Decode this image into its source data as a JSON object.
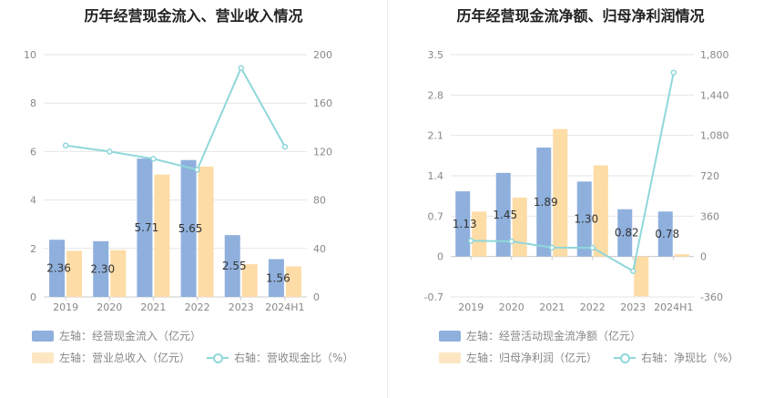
{
  "chart_data": [
    {
      "type": "bar",
      "title": "历年经营现金流入、营业收入情况",
      "categories": [
        "2019",
        "2020",
        "2021",
        "2022",
        "2023",
        "2024H1"
      ],
      "left_axis": {
        "ylim": [
          0,
          10
        ],
        "ticks": [
          "0",
          "2",
          "4",
          "6",
          "8",
          "10"
        ]
      },
      "right_axis": {
        "ylim": [
          0,
          200
        ],
        "ticks": [
          "0",
          "40",
          "80",
          "120",
          "160",
          "200"
        ]
      },
      "series": [
        {
          "name": "左轴：经营现金流入（亿元）",
          "axis": "left",
          "kind": "bar",
          "color": "#8fb0dd",
          "values": [
            2.36,
            2.3,
            5.71,
            5.65,
            2.55,
            1.56
          ],
          "labels": [
            "2.36",
            "2.30",
            "5.71",
            "5.65",
            "2.55",
            "1.56"
          ]
        },
        {
          "name": "左轴：营业总收入（亿元）",
          "axis": "left",
          "kind": "bar",
          "color": "#fddca6",
          "values": [
            1.9,
            1.93,
            5.05,
            5.38,
            1.35,
            1.26
          ]
        },
        {
          "name": "右轴：营收现金比（%）",
          "axis": "right",
          "kind": "line",
          "color": "#8fd7db",
          "values": [
            125,
            120,
            114,
            105,
            189,
            124
          ]
        }
      ],
      "grid": true,
      "legend_position": "bottom"
    },
    {
      "type": "bar",
      "title": "历年经营现金流净额、归母净利润情况",
      "categories": [
        "2019",
        "2020",
        "2021",
        "2022",
        "2023",
        "2024H1"
      ],
      "left_axis": {
        "ylim": [
          -0.7,
          3.5
        ],
        "ticks": [
          "-0.7",
          "0",
          "0.7",
          "1.4",
          "2.1",
          "2.8",
          "3.5"
        ]
      },
      "right_axis": {
        "ylim": [
          -360,
          1800
        ],
        "ticks": [
          "-360",
          "0",
          "360",
          "720",
          "1,080",
          "1,440",
          "1,800"
        ]
      },
      "series": [
        {
          "name": "左轴：经营活动现金流净额（亿元）",
          "axis": "left",
          "kind": "bar",
          "color": "#8fb0dd",
          "values": [
            1.13,
            1.45,
            1.89,
            1.3,
            0.82,
            0.78
          ],
          "labels": [
            "1.13",
            "1.45",
            "1.89",
            "1.30",
            "0.82",
            "0.78"
          ]
        },
        {
          "name": "左轴：归母净利润（亿元）",
          "axis": "left",
          "kind": "bar",
          "color": "#fddca6",
          "values": [
            0.78,
            1.02,
            2.21,
            1.58,
            -0.69,
            0.04
          ]
        },
        {
          "name": "右轴：净现比（%）",
          "axis": "right",
          "kind": "line",
          "color": "#8fd7db",
          "values": [
            140,
            135,
            80,
            78,
            -130,
            1640
          ]
        }
      ],
      "grid": true,
      "legend_position": "bottom"
    }
  ]
}
